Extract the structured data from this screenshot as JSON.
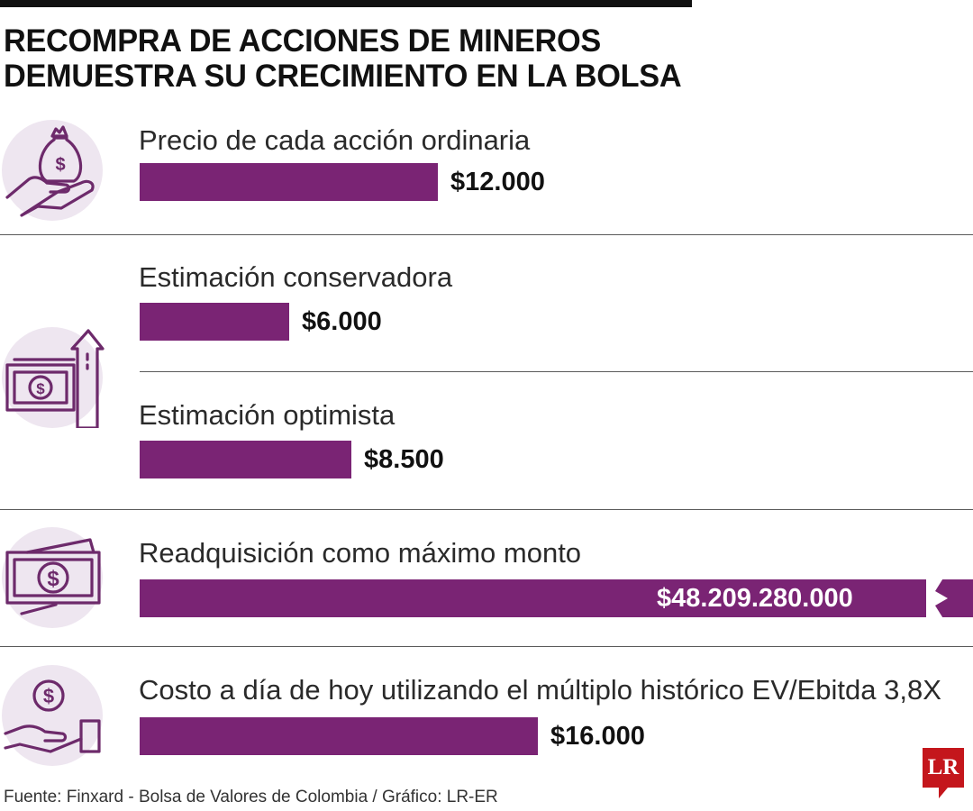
{
  "title": {
    "line1": "RECOMPRA DE ACCIONES DE MINEROS",
    "line2": "DEMUESTRA SU CRECIMIENTO EN LA BOLSA"
  },
  "colors": {
    "bar": "#7a2474",
    "icon_bg": "#eee6f0",
    "logo": "#c4161c"
  },
  "icons": [
    "money-bag-hand-icon",
    "banknote-arrow-up-icon",
    "banknotes-icon",
    "coin-hand-icon"
  ],
  "chart_data": {
    "type": "bar",
    "orientation": "horizontal",
    "title": "RECOMPRA DE ACCIONES DE MINEROS DEMUESTRA SU CRECIMIENTO EN LA BOLSA",
    "unit": "COP",
    "categories": [
      "Precio de cada acción ordinaria",
      "Estimación conservadora",
      "Estimación optimista",
      "Readquisición como máximo monto",
      "Costo a día de hoy utilizando el múltiplo histórico EV/Ebitda 3,8X"
    ],
    "values": [
      12000,
      6000,
      8500,
      48209280000,
      16000
    ],
    "value_labels": [
      "$12.000",
      "$6.000",
      "$8.500",
      "$48.209.280.000",
      "$16.000"
    ],
    "axis_break_on": [
      3
    ],
    "scale_max": 33500
  },
  "source": "Fuente: Finxard - Bolsa de Valores de Colombia / Gráfico: LR-ER",
  "logo_text": "LR"
}
